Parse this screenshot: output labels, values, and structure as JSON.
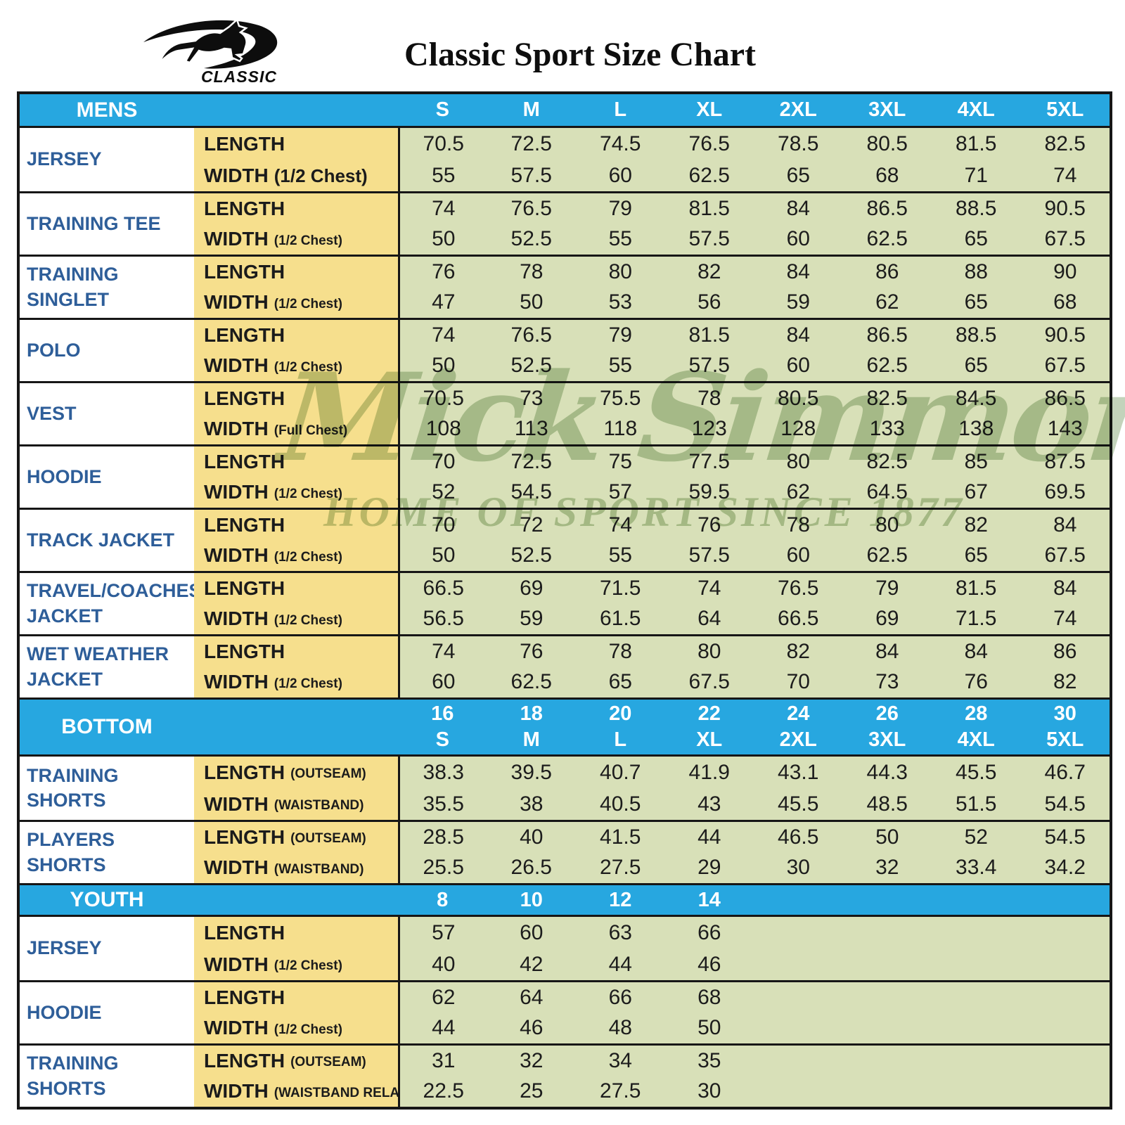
{
  "page": {
    "title": "Classic Sport Size Chart"
  },
  "brand": {
    "logo_text": "CLASSIC",
    "icon": "kangaroo-swoosh-logo"
  },
  "watermark": {
    "line1": "Mick Simmons",
    "registered": "®",
    "line2": "HOME OF SPORT SINCE 1877"
  },
  "colors": {
    "header_blue": "#27A7E0",
    "label_blue": "#2E5E99",
    "measure_yellow": "#F6DF8D",
    "data_green": "#D8E0B8",
    "border_black": "#161616"
  },
  "table": {
    "sections": [
      {
        "name": "MENS",
        "label": "MENS",
        "sizes": [
          [
            "S"
          ],
          [
            "M"
          ],
          [
            "L"
          ],
          [
            "XL"
          ],
          [
            "2XL"
          ],
          [
            "3XL"
          ],
          [
            "4XL"
          ],
          [
            "5XL"
          ]
        ],
        "rows": [
          {
            "item": "JERSEY",
            "measures": [
              {
                "label": "LENGTH",
                "qual": "",
                "big": false,
                "values": [
                  "70.5",
                  "72.5",
                  "74.5",
                  "76.5",
                  "78.5",
                  "80.5",
                  "81.5",
                  "82.5"
                ]
              },
              {
                "label": "WIDTH",
                "qual": "(1/2 Chest)",
                "big": true,
                "values": [
                  "55",
                  "57.5",
                  "60",
                  "62.5",
                  "65",
                  "68",
                  "71",
                  "74"
                ]
              }
            ]
          },
          {
            "item": "TRAINING TEE",
            "measures": [
              {
                "label": "LENGTH",
                "qual": "",
                "big": false,
                "values": [
                  "74",
                  "76.5",
                  "79",
                  "81.5",
                  "84",
                  "86.5",
                  "88.5",
                  "90.5"
                ]
              },
              {
                "label": "WIDTH",
                "qual": "(1/2 Chest)",
                "big": false,
                "values": [
                  "50",
                  "52.5",
                  "55",
                  "57.5",
                  "60",
                  "62.5",
                  "65",
                  "67.5"
                ]
              }
            ]
          },
          {
            "item": "TRAINING SINGLET",
            "measures": [
              {
                "label": "LENGTH",
                "qual": "",
                "big": false,
                "values": [
                  "76",
                  "78",
                  "80",
                  "82",
                  "84",
                  "86",
                  "88",
                  "90"
                ]
              },
              {
                "label": "WIDTH",
                "qual": "(1/2 Chest)",
                "big": false,
                "values": [
                  "47",
                  "50",
                  "53",
                  "56",
                  "59",
                  "62",
                  "65",
                  "68"
                ]
              }
            ]
          },
          {
            "item": "POLO",
            "measures": [
              {
                "label": "LENGTH",
                "qual": "",
                "big": false,
                "values": [
                  "74",
                  "76.5",
                  "79",
                  "81.5",
                  "84",
                  "86.5",
                  "88.5",
                  "90.5"
                ]
              },
              {
                "label": "WIDTH",
                "qual": "(1/2 Chest)",
                "big": false,
                "values": [
                  "50",
                  "52.5",
                  "55",
                  "57.5",
                  "60",
                  "62.5",
                  "65",
                  "67.5"
                ]
              }
            ]
          },
          {
            "item": "VEST",
            "measures": [
              {
                "label": "LENGTH",
                "qual": "",
                "big": false,
                "values": [
                  "70.5",
                  "73",
                  "75.5",
                  "78",
                  "80.5",
                  "82.5",
                  "84.5",
                  "86.5"
                ]
              },
              {
                "label": "WIDTH",
                "qual": "(Full Chest)",
                "big": false,
                "values": [
                  "108",
                  "113",
                  "118",
                  "123",
                  "128",
                  "133",
                  "138",
                  "143"
                ]
              }
            ]
          },
          {
            "item": "HOODIE",
            "measures": [
              {
                "label": "LENGTH",
                "qual": "",
                "big": false,
                "values": [
                  "70",
                  "72.5",
                  "75",
                  "77.5",
                  "80",
                  "82.5",
                  "85",
                  "87.5"
                ]
              },
              {
                "label": "WIDTH",
                "qual": "(1/2 Chest)",
                "big": false,
                "values": [
                  "52",
                  "54.5",
                  "57",
                  "59.5",
                  "62",
                  "64.5",
                  "67",
                  "69.5"
                ]
              }
            ]
          },
          {
            "item": "TRACK JACKET",
            "measures": [
              {
                "label": "LENGTH",
                "qual": "",
                "big": false,
                "values": [
                  "70",
                  "72",
                  "74",
                  "76",
                  "78",
                  "80",
                  "82",
                  "84"
                ]
              },
              {
                "label": "WIDTH",
                "qual": "(1/2 Chest)",
                "big": false,
                "values": [
                  "50",
                  "52.5",
                  "55",
                  "57.5",
                  "60",
                  "62.5",
                  "65",
                  "67.5"
                ]
              }
            ]
          },
          {
            "item": "TRAVEL/COACHES JACKET",
            "measures": [
              {
                "label": "LENGTH",
                "qual": "",
                "big": false,
                "values": [
                  "66.5",
                  "69",
                  "71.5",
                  "74",
                  "76.5",
                  "79",
                  "81.5",
                  "84"
                ]
              },
              {
                "label": "WIDTH",
                "qual": "(1/2 Chest)",
                "big": false,
                "values": [
                  "56.5",
                  "59",
                  "61.5",
                  "64",
                  "66.5",
                  "69",
                  "71.5",
                  "74"
                ]
              }
            ]
          },
          {
            "item": "WET WEATHER JACKET",
            "measures": [
              {
                "label": "LENGTH",
                "qual": "",
                "big": false,
                "values": [
                  "74",
                  "76",
                  "78",
                  "80",
                  "82",
                  "84",
                  "84",
                  "86"
                ]
              },
              {
                "label": "WIDTH",
                "qual": "(1/2 Chest)",
                "big": false,
                "values": [
                  "60",
                  "62.5",
                  "65",
                  "67.5",
                  "70",
                  "73",
                  "76",
                  "82"
                ]
              }
            ]
          }
        ]
      },
      {
        "name": "BOTTOM",
        "label": "BOTTOM",
        "sizes": [
          [
            "16",
            "S"
          ],
          [
            "18",
            "M"
          ],
          [
            "20",
            "L"
          ],
          [
            "22",
            "XL"
          ],
          [
            "24",
            "2XL"
          ],
          [
            "26",
            "3XL"
          ],
          [
            "28",
            "4XL"
          ],
          [
            "30",
            "5XL"
          ]
        ],
        "rows": [
          {
            "item": "TRAINING SHORTS",
            "measures": [
              {
                "label": "LENGTH",
                "qual": "(OUTSEAM)",
                "big": false,
                "values": [
                  "38.3",
                  "39.5",
                  "40.7",
                  "41.9",
                  "43.1",
                  "44.3",
                  "45.5",
                  "46.7"
                ]
              },
              {
                "label": "WIDTH",
                "qual": "(WAISTBAND)",
                "big": false,
                "values": [
                  "35.5",
                  "38",
                  "40.5",
                  "43",
                  "45.5",
                  "48.5",
                  "51.5",
                  "54.5"
                ]
              }
            ]
          },
          {
            "item": "PLAYERS SHORTS",
            "measures": [
              {
                "label": "LENGTH",
                "qual": "(OUTSEAM)",
                "big": false,
                "values": [
                  "28.5",
                  "40",
                  "41.5",
                  "44",
                  "46.5",
                  "50",
                  "52",
                  "54.5"
                ]
              },
              {
                "label": "WIDTH",
                "qual": "(WAISTBAND)",
                "big": false,
                "values": [
                  "25.5",
                  "26.5",
                  "27.5",
                  "29",
                  "30",
                  "32",
                  "33.4",
                  "34.2"
                ]
              }
            ]
          }
        ]
      },
      {
        "name": "YOUTH",
        "label": "YOUTH",
        "sizes": [
          [
            "8"
          ],
          [
            "10"
          ],
          [
            "12"
          ],
          [
            "14"
          ],
          [
            ""
          ],
          [
            ""
          ],
          [
            ""
          ],
          [
            ""
          ]
        ],
        "rows": [
          {
            "item": "JERSEY",
            "measures": [
              {
                "label": "LENGTH",
                "qual": "",
                "big": false,
                "values": [
                  "57",
                  "60",
                  "63",
                  "66",
                  "",
                  "",
                  "",
                  ""
                ]
              },
              {
                "label": "WIDTH",
                "qual": "(1/2 Chest)",
                "big": false,
                "values": [
                  "40",
                  "42",
                  "44",
                  "46",
                  "",
                  "",
                  "",
                  ""
                ]
              }
            ]
          },
          {
            "item": "HOODIE",
            "measures": [
              {
                "label": "LENGTH",
                "qual": "",
                "big": false,
                "values": [
                  "62",
                  "64",
                  "66",
                  "68",
                  "",
                  "",
                  "",
                  ""
                ]
              },
              {
                "label": "WIDTH",
                "qual": "(1/2 Chest)",
                "big": false,
                "values": [
                  "44",
                  "46",
                  "48",
                  "50",
                  "",
                  "",
                  "",
                  ""
                ]
              }
            ]
          },
          {
            "item": "TRAINING SHORTS",
            "measures": [
              {
                "label": "LENGTH",
                "qual": "(OUTSEAM)",
                "big": false,
                "values": [
                  "31",
                  "32",
                  "34",
                  "35",
                  "",
                  "",
                  "",
                  ""
                ]
              },
              {
                "label": "WIDTH",
                "qual": "(WAISTBAND RELAX)",
                "big": false,
                "values": [
                  "22.5",
                  "25",
                  "27.5",
                  "30",
                  "",
                  "",
                  "",
                  ""
                ]
              }
            ]
          }
        ]
      }
    ]
  }
}
